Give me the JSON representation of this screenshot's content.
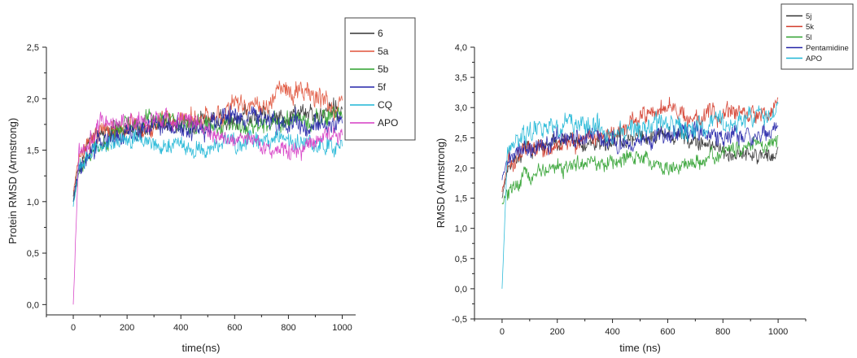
{
  "chart_data": [
    {
      "type": "line",
      "xlabel": "time(ns)",
      "ylabel": "Protein RMSD (Armstrong)",
      "xlim": [
        -100,
        1050
      ],
      "ylim": [
        -0.1,
        2.5
      ],
      "xticks": [
        0,
        200,
        400,
        600,
        800,
        1000
      ],
      "xtick_labels": [
        "0",
        "200",
        "400",
        "600",
        "800",
        "1000"
      ],
      "yticks": [
        0.0,
        0.5,
        1.0,
        1.5,
        2.0,
        2.5
      ],
      "ytick_labels": [
        "0,0",
        "0,5",
        "1,0",
        "1,5",
        "2,0",
        "2,5"
      ],
      "legend_position": "top-right",
      "series": [
        {
          "name": "6",
          "color": "#333333",
          "start": 1.05,
          "x": [
            0,
            100,
            200,
            300,
            400,
            500,
            600,
            700,
            800,
            900,
            1000
          ],
          "values": [
            1.3,
            1.65,
            1.7,
            1.72,
            1.75,
            1.78,
            1.8,
            1.82,
            1.85,
            1.88,
            1.9
          ],
          "noise": 0.08
        },
        {
          "name": "5a",
          "color": "#e0533a",
          "start": 1.1,
          "x": [
            0,
            100,
            200,
            300,
            400,
            500,
            600,
            700,
            800,
            900,
            1000
          ],
          "values": [
            1.35,
            1.7,
            1.72,
            1.75,
            1.78,
            1.8,
            1.88,
            1.95,
            2.1,
            2.0,
            1.95
          ],
          "noise": 0.09
        },
        {
          "name": "5b",
          "color": "#2ca02c",
          "start": 1.0,
          "x": [
            0,
            100,
            200,
            300,
            400,
            500,
            600,
            700,
            800,
            900,
            1000
          ],
          "values": [
            1.2,
            1.55,
            1.75,
            1.8,
            1.78,
            1.75,
            1.72,
            1.75,
            1.78,
            1.8,
            1.85
          ],
          "noise": 0.08
        },
        {
          "name": "5f",
          "color": "#2424a8",
          "start": 1.0,
          "x": [
            0,
            100,
            200,
            300,
            400,
            500,
            600,
            700,
            800,
            900,
            1000
          ],
          "values": [
            1.25,
            1.6,
            1.65,
            1.7,
            1.72,
            1.75,
            1.85,
            1.8,
            1.78,
            1.75,
            1.8
          ],
          "noise": 0.09
        },
        {
          "name": "CQ",
          "color": "#1fb6d6",
          "start": 0.95,
          "x": [
            0,
            100,
            200,
            300,
            400,
            500,
            600,
            700,
            800,
            900,
            1000
          ],
          "values": [
            1.25,
            1.55,
            1.6,
            1.58,
            1.55,
            1.5,
            1.6,
            1.62,
            1.6,
            1.55,
            1.55
          ],
          "noise": 0.08
        },
        {
          "name": "APO",
          "color": "#d63cc4",
          "start": 0.0,
          "x": [
            0,
            100,
            200,
            300,
            400,
            500,
            600,
            700,
            800,
            900,
            1000
          ],
          "values": [
            1.4,
            1.75,
            1.78,
            1.8,
            1.8,
            1.72,
            1.62,
            1.55,
            1.45,
            1.6,
            1.68
          ],
          "noise": 0.08
        }
      ]
    },
    {
      "type": "line",
      "xlabel": "time (ns)",
      "ylabel": "RMSD (Armstrong)",
      "xlim": [
        -100,
        1100
      ],
      "ylim": [
        -0.5,
        4.0
      ],
      "xticks": [
        0,
        200,
        400,
        600,
        800,
        1000
      ],
      "xtick_labels": [
        "0",
        "200",
        "400",
        "600",
        "800",
        "1000"
      ],
      "yticks": [
        -0.5,
        0.0,
        0.5,
        1.0,
        1.5,
        2.0,
        2.5,
        3.0,
        3.5,
        4.0
      ],
      "ytick_labels": [
        "-0,5",
        "0,0",
        "0,5",
        "1,0",
        "1,5",
        "2,0",
        "2,5",
        "3,0",
        "3,5",
        "4,0"
      ],
      "legend_position": "top-right",
      "series": [
        {
          "name": "5j",
          "color": "#333333",
          "start": 1.5,
          "x": [
            0,
            100,
            200,
            300,
            400,
            500,
            600,
            700,
            800,
            900,
            1000
          ],
          "values": [
            1.9,
            2.3,
            2.4,
            2.35,
            2.45,
            2.5,
            2.6,
            2.45,
            2.3,
            2.2,
            2.25
          ],
          "noise": 0.12
        },
        {
          "name": "5k",
          "color": "#d23b2a",
          "start": 1.6,
          "x": [
            0,
            100,
            200,
            300,
            400,
            500,
            600,
            700,
            800,
            900,
            1000
          ],
          "values": [
            2.0,
            2.3,
            2.35,
            2.4,
            2.6,
            2.8,
            3.0,
            2.8,
            2.9,
            2.85,
            3.0
          ],
          "noise": 0.14
        },
        {
          "name": "5l",
          "color": "#2ca02c",
          "start": 1.4,
          "x": [
            0,
            100,
            200,
            300,
            400,
            500,
            600,
            700,
            800,
            900,
            1000
          ],
          "values": [
            1.6,
            1.85,
            2.0,
            2.05,
            2.1,
            2.15,
            2.0,
            2.1,
            2.25,
            2.35,
            2.5
          ],
          "noise": 0.12
        },
        {
          "name": "Pentamidine",
          "color": "#2424a8",
          "start": 1.8,
          "x": [
            0,
            100,
            200,
            300,
            400,
            500,
            600,
            700,
            800,
            900,
            1000
          ],
          "values": [
            2.1,
            2.3,
            2.45,
            2.6,
            2.5,
            2.4,
            2.55,
            2.6,
            2.5,
            2.55,
            2.65
          ],
          "noise": 0.14
        },
        {
          "name": "APO",
          "color": "#1fb6d6",
          "start": 0.0,
          "x": [
            0,
            100,
            200,
            300,
            400,
            500,
            600,
            700,
            800,
            900,
            1000
          ],
          "values": [
            2.3,
            2.6,
            2.75,
            2.7,
            2.6,
            2.65,
            2.7,
            2.65,
            2.75,
            2.85,
            3.0
          ],
          "noise": 0.15
        }
      ]
    }
  ]
}
